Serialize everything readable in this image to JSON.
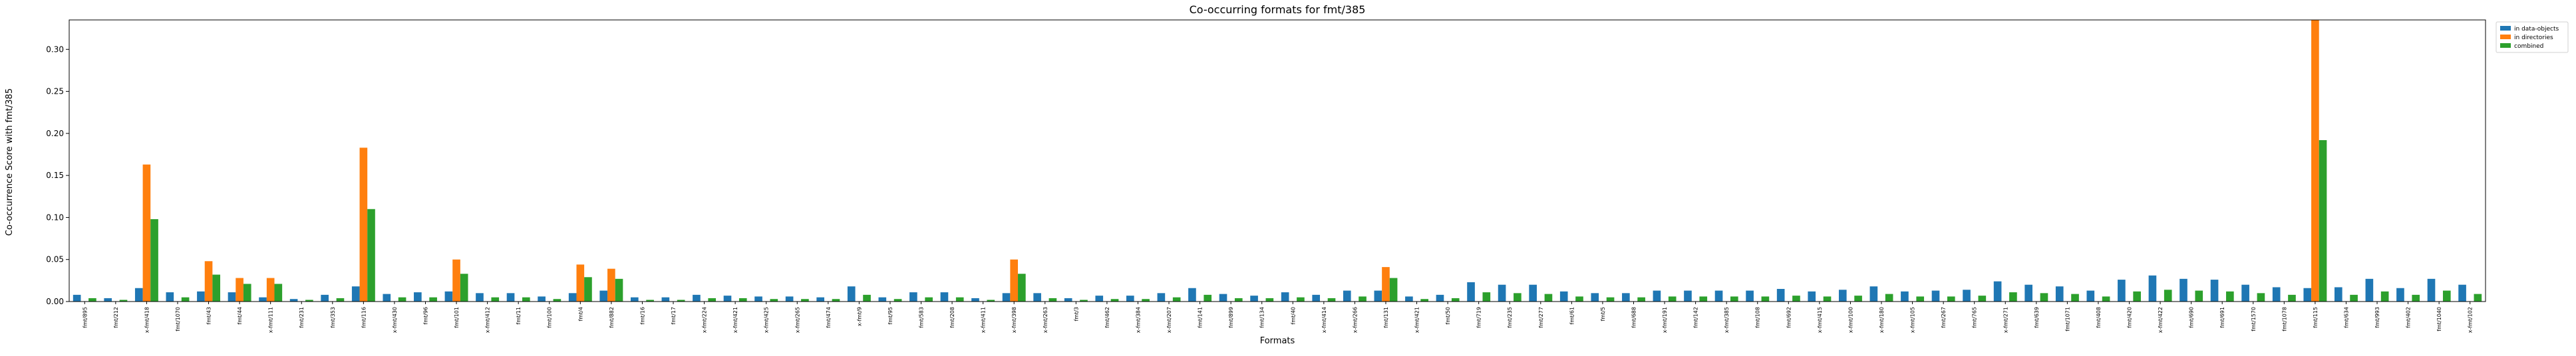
{
  "chart_data": {
    "type": "bar",
    "title": "Co-occurring formats for fmt/385",
    "xlabel": "Formats",
    "ylabel": "Co-occurrence Score with fmt/385",
    "ylim": [
      0,
      0.335
    ],
    "yticks": [
      "0.00",
      "0.05",
      "0.10",
      "0.15",
      "0.20",
      "0.25",
      "0.30"
    ],
    "grid": false,
    "legend_position": "outside-top-right",
    "categories": [
      "fmt/895",
      "fmt/212",
      "x-fmt/418",
      "fmt/1070",
      "fmt/43",
      "fmt/44",
      "x-fmt/111",
      "fmt/231",
      "fmt/353",
      "fmt/116",
      "x-fmt/430",
      "fmt/96",
      "fmt/101",
      "x-fmt/412",
      "fmt/11",
      "fmt/100",
      "fmt/4",
      "fmt/882",
      "fmt/16",
      "fmt/17",
      "x-fmt/224",
      "x-fmt/421",
      "x-fmt/425",
      "x-fmt/265",
      "fmt/474",
      "x-fmt/9",
      "fmt/95",
      "fmt/583",
      "fmt/208",
      "x-fmt/411",
      "x-fmt/398",
      "x-fmt/263",
      "fmt/3",
      "fmt/462",
      "x-fmt/384",
      "x-fmt/207",
      "fmt/141",
      "fmt/899",
      "fmt/134",
      "fmt/40",
      "x-fmt/414",
      "x-fmt/266",
      "fmt/131",
      "x-fmt/421",
      "fmt/50",
      "fmt/719",
      "fmt/235",
      "fmt/277",
      "fmt/61",
      "fmt/5",
      "fmt/688",
      "x-fmt/191",
      "fmt/142",
      "x-fmt/385",
      "fmt/108",
      "fmt/692",
      "x-fmt/415",
      "x-fmt/100",
      "x-fmt/180",
      "x-fmt/105",
      "fmt/267",
      "fmt/765",
      "x-fmt/271",
      "fmt/639",
      "fmt/1071",
      "fmt/408",
      "fmt/420",
      "x-fmt/422",
      "fmt/690",
      "fmt/691",
      "fmt/1570",
      "fmt/1078",
      "fmt/115",
      "fmt/634",
      "fmt/993",
      "fmt/402",
      "fmt/1040",
      "x-fmt/102"
    ],
    "series": [
      {
        "name": "in data-objects",
        "color": "#1f77b4",
        "values": [
          0.008,
          0.004,
          0.016,
          0.011,
          0.012,
          0.011,
          0.005,
          0.003,
          0.008,
          0.018,
          0.009,
          0.011,
          0.012,
          0.01,
          0.01,
          0.006,
          0.01,
          0.013,
          0.005,
          0.005,
          0.008,
          0.007,
          0.006,
          0.006,
          0.005,
          0.018,
          0.005,
          0.011,
          0.011,
          0.004,
          0.01,
          0.01,
          0.004,
          0.007,
          0.007,
          0.01,
          0.016,
          0.009,
          0.007,
          0.011,
          0.008,
          0.013,
          0.013,
          0.006,
          0.008,
          0.023,
          0.02,
          0.02,
          0.012,
          0.01,
          0.01,
          0.013,
          0.013,
          0.013,
          0.013,
          0.015,
          0.012,
          0.014,
          0.018,
          0.012,
          0.013,
          0.014,
          0.024,
          0.02,
          0.018,
          0.013,
          0.026,
          0.031,
          0.027,
          0.026,
          0.02,
          0.017,
          0.016,
          0.017,
          0.027,
          0.016,
          0.027,
          0.02
        ]
      },
      {
        "name": "in directories",
        "color": "#ff7f0e",
        "values": [
          0,
          0,
          0.163,
          0,
          0.048,
          0.028,
          0.028,
          0,
          0,
          0.183,
          0,
          0,
          0.05,
          0,
          0,
          0,
          0.044,
          0.039,
          0,
          0,
          0,
          0,
          0,
          0,
          0,
          0,
          0,
          0,
          0,
          0,
          0.05,
          0,
          0,
          0,
          0,
          0,
          0,
          0,
          0,
          0,
          0,
          0,
          0.041,
          0,
          0,
          0,
          0,
          0,
          0,
          0,
          0,
          0,
          0,
          0,
          0,
          0,
          0,
          0,
          0,
          0,
          0,
          0,
          0,
          0,
          0,
          0,
          0,
          0,
          0,
          0,
          0,
          0,
          0.335,
          0,
          0,
          0,
          0,
          0
        ]
      },
      {
        "name": "combined",
        "color": "#2ca02c",
        "values": [
          0.004,
          0.002,
          0.098,
          0.005,
          0.032,
          0.021,
          0.021,
          0.002,
          0.004,
          0.11,
          0.005,
          0.005,
          0.033,
          0.005,
          0.005,
          0.003,
          0.029,
          0.027,
          0.002,
          0.002,
          0.004,
          0.004,
          0.003,
          0.003,
          0.003,
          0.008,
          0.003,
          0.005,
          0.005,
          0.002,
          0.033,
          0.004,
          0.002,
          0.003,
          0.003,
          0.005,
          0.008,
          0.004,
          0.004,
          0.005,
          0.004,
          0.006,
          0.028,
          0.003,
          0.004,
          0.011,
          0.01,
          0.009,
          0.006,
          0.005,
          0.005,
          0.006,
          0.006,
          0.006,
          0.006,
          0.007,
          0.006,
          0.007,
          0.009,
          0.006,
          0.006,
          0.007,
          0.011,
          0.01,
          0.009,
          0.006,
          0.012,
          0.014,
          0.013,
          0.012,
          0.01,
          0.008,
          0.192,
          0.008,
          0.012,
          0.008,
          0.013,
          0.009
        ]
      }
    ]
  }
}
